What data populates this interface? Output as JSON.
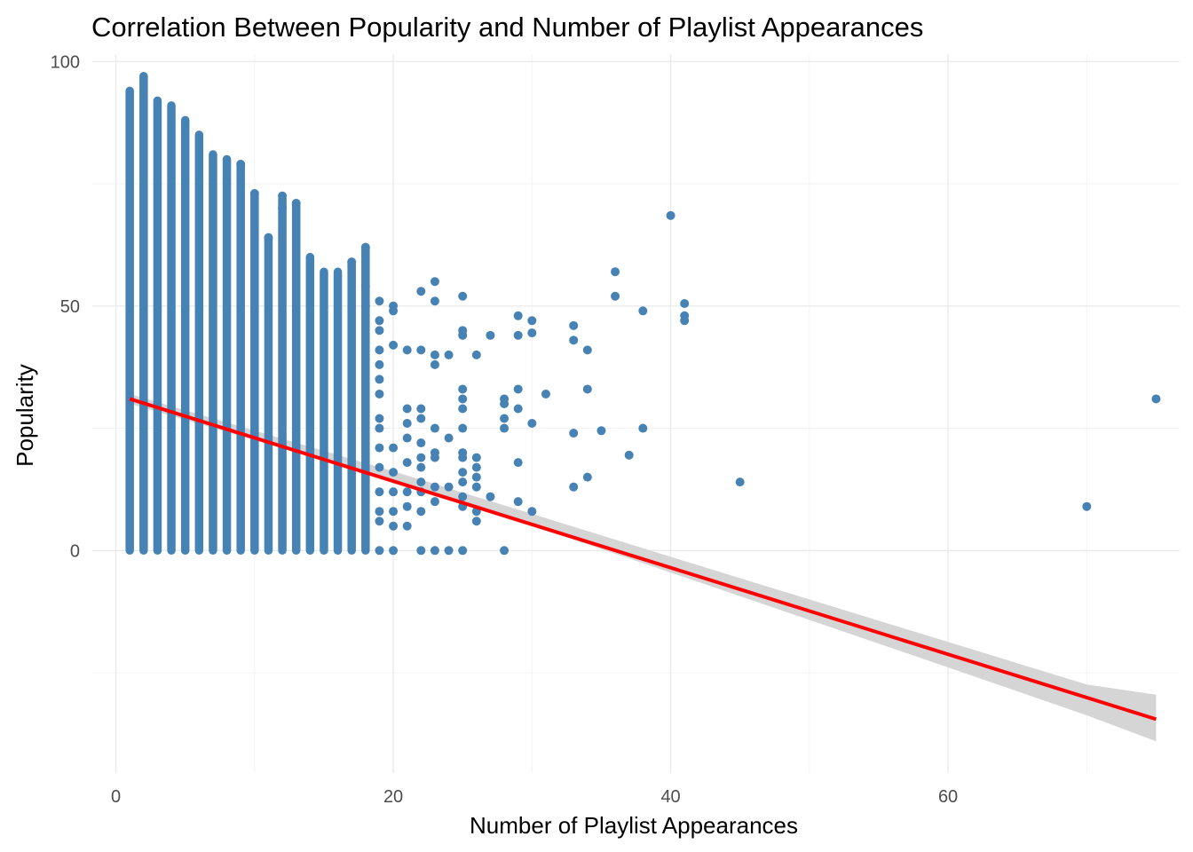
{
  "chart_data": {
    "type": "scatter",
    "title": "Correlation Between Popularity and Number of Playlist Appearances",
    "xlabel": "Number of Playlist Appearances",
    "ylabel": "Popularity",
    "xlim": [
      -1.7,
      76.7
    ],
    "ylim": [
      -45.5,
      101.5
    ],
    "x_ticks": [
      0,
      20,
      40,
      60
    ],
    "y_ticks": [
      0,
      50,
      100
    ],
    "grid": true,
    "legend": "none",
    "colors": {
      "points": "#4682b4",
      "trend": "#ff0000",
      "ribbon": "#d3d3d3"
    },
    "columns": [
      {
        "x": 1,
        "ymin": 0,
        "ymax": 94
      },
      {
        "x": 2,
        "ymin": 0,
        "ymax": 97
      },
      {
        "x": 3,
        "ymin": 0,
        "ymax": 92
      },
      {
        "x": 4,
        "ymin": 0,
        "ymax": 91
      },
      {
        "x": 5,
        "ymin": 0,
        "ymax": 88
      },
      {
        "x": 6,
        "ymin": 0,
        "ymax": 85
      },
      {
        "x": 7,
        "ymin": 0,
        "ymax": 81
      },
      {
        "x": 8,
        "ymin": 0,
        "ymax": 80
      },
      {
        "x": 9,
        "ymin": 0,
        "ymax": 79
      },
      {
        "x": 10,
        "ymin": 0,
        "ymax": 73
      },
      {
        "x": 11,
        "ymin": 0,
        "ymax": 64
      },
      {
        "x": 12,
        "ymin": 0,
        "ymax": 72
      },
      {
        "x": 13,
        "ymin": 0,
        "ymax": 71
      },
      {
        "x": 14,
        "ymin": 0,
        "ymax": 60
      },
      {
        "x": 15,
        "ymin": 0,
        "ymax": 57
      },
      {
        "x": 16,
        "ymin": 0,
        "ymax": 57
      },
      {
        "x": 17,
        "ymin": 0,
        "ymax": 59
      },
      {
        "x": 18,
        "ymin": 0,
        "ymax": 62
      }
    ],
    "points": [
      {
        "x": 11,
        "y": 64
      },
      {
        "x": 12,
        "y": 72.5
      },
      {
        "x": 12,
        "y": 70
      },
      {
        "x": 13,
        "y": 71
      },
      {
        "x": 10,
        "y": 73
      },
      {
        "x": 9,
        "y": 79
      },
      {
        "x": 17,
        "y": 59
      },
      {
        "x": 18,
        "y": 62
      },
      {
        "x": 18,
        "y": 54
      },
      {
        "x": 18,
        "y": 50
      },
      {
        "x": 19,
        "y": 51
      },
      {
        "x": 19,
        "y": 47
      },
      {
        "x": 19,
        "y": 45
      },
      {
        "x": 19,
        "y": 41
      },
      {
        "x": 19,
        "y": 38
      },
      {
        "x": 19,
        "y": 35
      },
      {
        "x": 19,
        "y": 32
      },
      {
        "x": 19,
        "y": 27
      },
      {
        "x": 19,
        "y": 25
      },
      {
        "x": 19,
        "y": 21
      },
      {
        "x": 19,
        "y": 17
      },
      {
        "x": 19,
        "y": 12
      },
      {
        "x": 19,
        "y": 8
      },
      {
        "x": 19,
        "y": 6
      },
      {
        "x": 19,
        "y": 0
      },
      {
        "x": 20,
        "y": 50
      },
      {
        "x": 20,
        "y": 49
      },
      {
        "x": 20,
        "y": 42
      },
      {
        "x": 20,
        "y": 21
      },
      {
        "x": 20,
        "y": 16
      },
      {
        "x": 20,
        "y": 12
      },
      {
        "x": 20,
        "y": 8
      },
      {
        "x": 20,
        "y": 5
      },
      {
        "x": 20,
        "y": 0
      },
      {
        "x": 21,
        "y": 41
      },
      {
        "x": 21,
        "y": 29
      },
      {
        "x": 21,
        "y": 26
      },
      {
        "x": 21,
        "y": 23
      },
      {
        "x": 21,
        "y": 18
      },
      {
        "x": 21,
        "y": 12
      },
      {
        "x": 21,
        "y": 9
      },
      {
        "x": 21,
        "y": 5
      },
      {
        "x": 22,
        "y": 53
      },
      {
        "x": 22,
        "y": 41
      },
      {
        "x": 22,
        "y": 29
      },
      {
        "x": 22,
        "y": 27
      },
      {
        "x": 22,
        "y": 22
      },
      {
        "x": 22,
        "y": 19
      },
      {
        "x": 22,
        "y": 17
      },
      {
        "x": 22,
        "y": 14
      },
      {
        "x": 22,
        "y": 12
      },
      {
        "x": 22,
        "y": 8
      },
      {
        "x": 22,
        "y": 0
      },
      {
        "x": 23,
        "y": 55
      },
      {
        "x": 23,
        "y": 51
      },
      {
        "x": 23,
        "y": 40
      },
      {
        "x": 23,
        "y": 38
      },
      {
        "x": 23,
        "y": 25
      },
      {
        "x": 23,
        "y": 20
      },
      {
        "x": 23,
        "y": 19
      },
      {
        "x": 23,
        "y": 13
      },
      {
        "x": 23,
        "y": 10
      },
      {
        "x": 23,
        "y": 0
      },
      {
        "x": 24,
        "y": 40
      },
      {
        "x": 24,
        "y": 23
      },
      {
        "x": 24,
        "y": 13
      },
      {
        "x": 24,
        "y": 0
      },
      {
        "x": 25,
        "y": 52
      },
      {
        "x": 25,
        "y": 45
      },
      {
        "x": 25,
        "y": 44
      },
      {
        "x": 25,
        "y": 33
      },
      {
        "x": 25,
        "y": 31
      },
      {
        "x": 25,
        "y": 29
      },
      {
        "x": 25,
        "y": 25
      },
      {
        "x": 25,
        "y": 20
      },
      {
        "x": 25,
        "y": 19
      },
      {
        "x": 25,
        "y": 16
      },
      {
        "x": 25,
        "y": 14
      },
      {
        "x": 25,
        "y": 11
      },
      {
        "x": 25,
        "y": 9
      },
      {
        "x": 25,
        "y": 0
      },
      {
        "x": 26,
        "y": 40
      },
      {
        "x": 26,
        "y": 19
      },
      {
        "x": 26,
        "y": 17
      },
      {
        "x": 26,
        "y": 15
      },
      {
        "x": 26,
        "y": 13
      },
      {
        "x": 26,
        "y": 8
      },
      {
        "x": 26,
        "y": 6
      },
      {
        "x": 27,
        "y": 44
      },
      {
        "x": 27,
        "y": 11
      },
      {
        "x": 28,
        "y": 31
      },
      {
        "x": 28,
        "y": 30
      },
      {
        "x": 28,
        "y": 27
      },
      {
        "x": 28,
        "y": 25
      },
      {
        "x": 28,
        "y": 0
      },
      {
        "x": 29,
        "y": 48
      },
      {
        "x": 29,
        "y": 44
      },
      {
        "x": 29,
        "y": 33
      },
      {
        "x": 29,
        "y": 29
      },
      {
        "x": 29,
        "y": 18
      },
      {
        "x": 29,
        "y": 10
      },
      {
        "x": 30,
        "y": 47
      },
      {
        "x": 30,
        "y": 44.5
      },
      {
        "x": 30,
        "y": 26
      },
      {
        "x": 30,
        "y": 8
      },
      {
        "x": 31,
        "y": 32
      },
      {
        "x": 33,
        "y": 46
      },
      {
        "x": 33,
        "y": 43
      },
      {
        "x": 33,
        "y": 24
      },
      {
        "x": 33,
        "y": 13
      },
      {
        "x": 34,
        "y": 41
      },
      {
        "x": 34,
        "y": 33
      },
      {
        "x": 34,
        "y": 15
      },
      {
        "x": 35,
        "y": 24.5
      },
      {
        "x": 36,
        "y": 57
      },
      {
        "x": 36,
        "y": 52
      },
      {
        "x": 37,
        "y": 19.5
      },
      {
        "x": 38,
        "y": 49
      },
      {
        "x": 38,
        "y": 25
      },
      {
        "x": 40,
        "y": 68.5
      },
      {
        "x": 41,
        "y": 50.5
      },
      {
        "x": 41,
        "y": 48
      },
      {
        "x": 41,
        "y": 47
      },
      {
        "x": 45,
        "y": 14
      },
      {
        "x": 70,
        "y": 9
      },
      {
        "x": 75,
        "y": 31
      }
    ],
    "trend_line": {
      "x": [
        1,
        75
      ],
      "y": [
        31,
        -34.5
      ]
    },
    "confidence_band": {
      "x": [
        1,
        20,
        30,
        40,
        50,
        60,
        70,
        75
      ],
      "lower": [
        30,
        14.4,
        5.1,
        -4.5,
        -14.2,
        -23.9,
        -33.7,
        -39
      ],
      "upper": [
        32,
        16.2,
        7.5,
        -1.3,
        -10,
        -18.7,
        -27.4,
        -29.5
      ]
    }
  }
}
